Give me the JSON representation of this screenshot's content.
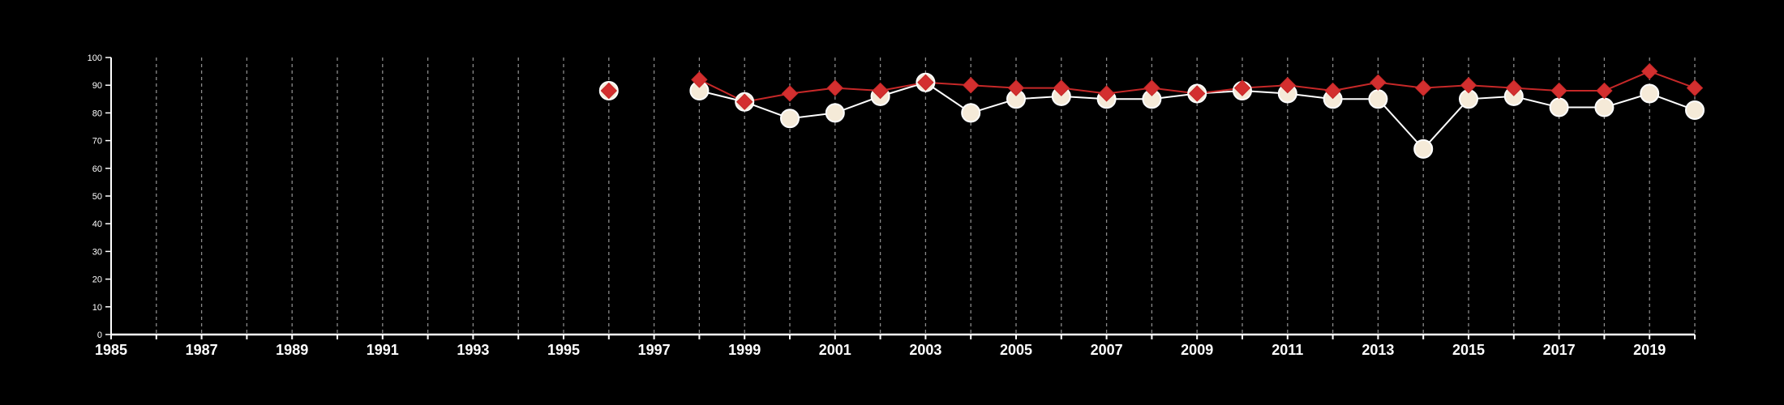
{
  "chart_data": {
    "type": "line",
    "background": "#000000",
    "grid": {
      "x_dashed": true,
      "y": false
    },
    "xlim": [
      1985,
      2020
    ],
    "ylim": [
      0,
      100
    ],
    "x_tick_labels": [
      "1985",
      "1987",
      "1989",
      "1991",
      "1993",
      "1995",
      "1997",
      "1999",
      "2001",
      "2003",
      "2005",
      "2007",
      "2009",
      "2011",
      "2013",
      "2015",
      "2017",
      "2019"
    ],
    "y_tick_labels": [
      "0",
      "10",
      "20",
      "30",
      "40",
      "50",
      "60",
      "70",
      "80",
      "90",
      "100"
    ],
    "series": [
      {
        "marker": "circle",
        "color": "#ffffff",
        "fill": "#f5ead8",
        "points": [
          {
            "x": 1996,
            "y": 88
          },
          {
            "x": 1998,
            "y": 88
          },
          {
            "x": 1999,
            "y": 84
          },
          {
            "x": 2000,
            "y": 78
          },
          {
            "x": 2001,
            "y": 80
          },
          {
            "x": 2002,
            "y": 86
          },
          {
            "x": 2003,
            "y": 91
          },
          {
            "x": 2004,
            "y": 80
          },
          {
            "x": 2005,
            "y": 85
          },
          {
            "x": 2006,
            "y": 86
          },
          {
            "x": 2007,
            "y": 85
          },
          {
            "x": 2008,
            "y": 85
          },
          {
            "x": 2009,
            "y": 87
          },
          {
            "x": 2010,
            "y": 88
          },
          {
            "x": 2011,
            "y": 87
          },
          {
            "x": 2012,
            "y": 85
          },
          {
            "x": 2013,
            "y": 85
          },
          {
            "x": 2014,
            "y": 67
          },
          {
            "x": 2015,
            "y": 85
          },
          {
            "x": 2016,
            "y": 86
          },
          {
            "x": 2017,
            "y": 82
          },
          {
            "x": 2018,
            "y": 82
          },
          {
            "x": 2019,
            "y": 87
          },
          {
            "x": 2020,
            "y": 81
          }
        ]
      },
      {
        "marker": "diamond",
        "color": "#c62828",
        "fill": "#d32f2f",
        "points": [
          {
            "x": 1996,
            "y": 88
          },
          {
            "x": 1998,
            "y": 92
          },
          {
            "x": 1999,
            "y": 84
          },
          {
            "x": 2000,
            "y": 87
          },
          {
            "x": 2001,
            "y": 89
          },
          {
            "x": 2002,
            "y": 88
          },
          {
            "x": 2003,
            "y": 91
          },
          {
            "x": 2004,
            "y": 90
          },
          {
            "x": 2005,
            "y": 89
          },
          {
            "x": 2006,
            "y": 89
          },
          {
            "x": 2007,
            "y": 87
          },
          {
            "x": 2008,
            "y": 89
          },
          {
            "x": 2009,
            "y": 87
          },
          {
            "x": 2010,
            "y": 89
          },
          {
            "x": 2011,
            "y": 90
          },
          {
            "x": 2012,
            "y": 88
          },
          {
            "x": 2013,
            "y": 91
          },
          {
            "x": 2014,
            "y": 89
          },
          {
            "x": 2015,
            "y": 90
          },
          {
            "x": 2016,
            "y": 89
          },
          {
            "x": 2017,
            "y": 88
          },
          {
            "x": 2018,
            "y": 88
          },
          {
            "x": 2019,
            "y": 95
          },
          {
            "x": 2020,
            "y": 89
          }
        ]
      }
    ]
  }
}
